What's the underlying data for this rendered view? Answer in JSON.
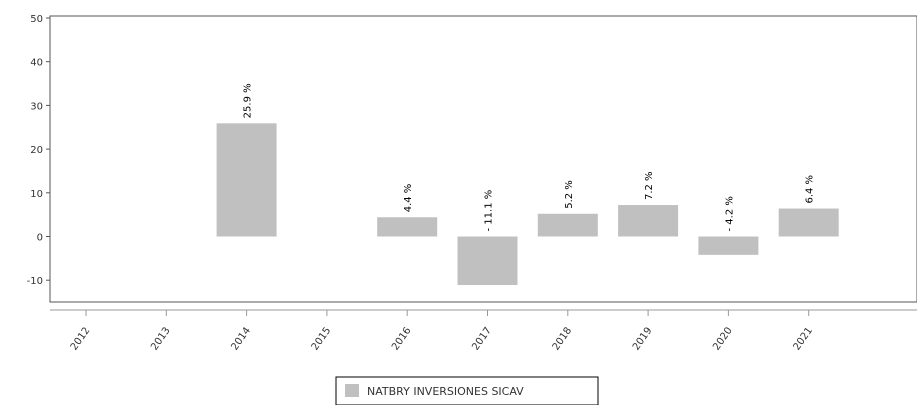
{
  "chart_data": {
    "type": "bar",
    "title": "",
    "xlabel": "",
    "ylabel": "",
    "categories": [
      "2012",
      "2013",
      "2014",
      "2015",
      "2016",
      "2017",
      "2018",
      "2019",
      "2020",
      "2021"
    ],
    "series": [
      {
        "name": "NATBRY INVERSIONES SICAV",
        "values": [
          null,
          null,
          25.9,
          null,
          4.4,
          -11.1,
          5.2,
          7.2,
          -4.2,
          6.4
        ],
        "labels": [
          "",
          "",
          "25.9 %",
          "",
          "4.4 %",
          "- 11.1 %",
          "5.2 %",
          "7.2 %",
          "- 4.2 %",
          "6.4 %"
        ],
        "color": "#c0c0c0"
      }
    ],
    "yticks": [
      "50",
      "40",
      "30",
      "20",
      "10",
      "0",
      "-10"
    ],
    "ylim": [
      -15,
      50
    ],
    "grid": false,
    "legend": "bottom-center"
  }
}
